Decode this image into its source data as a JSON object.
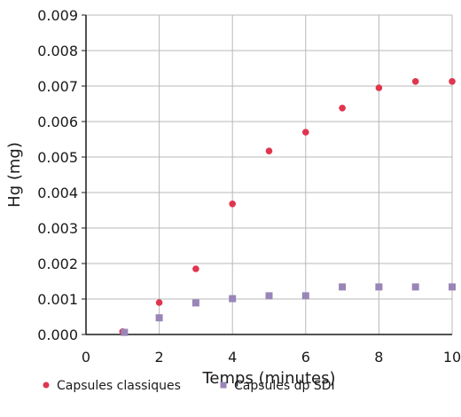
{
  "chart_data": {
    "type": "scatter",
    "title": "",
    "xlabel": "Temps (minutes)",
    "ylabel": "Hg (mg)",
    "xlim": [
      0,
      10
    ],
    "ylim": [
      0,
      0.009
    ],
    "x_ticks": [
      0,
      2,
      4,
      6,
      8,
      10
    ],
    "y_ticks": [
      0.0,
      0.001,
      0.002,
      0.003,
      0.004,
      0.005,
      0.006,
      0.007,
      0.008,
      0.009
    ],
    "y_tick_labels": [
      "0.000",
      "0.001",
      "0.002",
      "0.003",
      "0.004",
      "0.005",
      "0.006",
      "0.007",
      "0.008",
      "0.009"
    ],
    "x_tick_labels": [
      "0",
      "2",
      "4",
      "6",
      "8",
      "10"
    ],
    "grid": true,
    "legend_position": "bottom",
    "series": [
      {
        "name": "Capsules classiques",
        "marker": "circle",
        "color": "#e0354f",
        "x": [
          1,
          2,
          3,
          4,
          5,
          6,
          7,
          8,
          9,
          10
        ],
        "y": [
          8e-05,
          0.0009,
          0.00185,
          0.00368,
          0.00517,
          0.0057,
          0.00638,
          0.00695,
          0.00713,
          0.00713
        ]
      },
      {
        "name": "Capsules dp SDI",
        "marker": "square",
        "color": "#9a85b8",
        "x": [
          1.05,
          2,
          3,
          4,
          5,
          6,
          7,
          8,
          9,
          10
        ],
        "y": [
          6e-05,
          0.00047,
          0.00089,
          0.00101,
          0.00109,
          0.00109,
          0.00134,
          0.00134,
          0.00134,
          0.00134
        ]
      }
    ]
  }
}
